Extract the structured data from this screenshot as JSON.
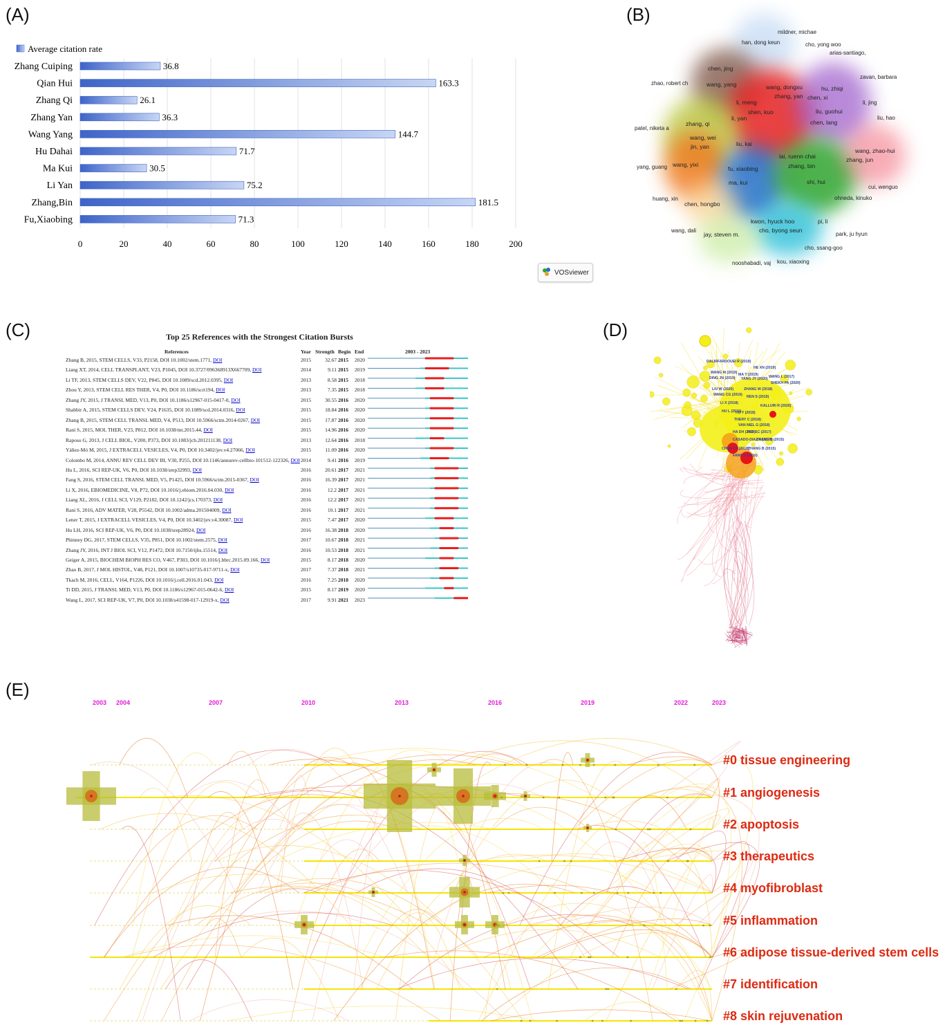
{
  "panels": {
    "a": "(A)",
    "b": "(B)",
    "c": "(C)",
    "d": "(D)",
    "e": "(E)"
  },
  "chart_data": [
    {
      "type": "bar",
      "orientation": "horizontal",
      "legend": "Average citation rate",
      "legend_position": "top-left",
      "categories": [
        "Zhang Cuiping",
        "Qian Hui",
        "Zhang Qi",
        "Zhang Yan",
        "Wang Yang",
        "Hu Dahai",
        "Ma Kui",
        "Li Yan",
        "Zhang,Bin",
        "Fu,Xiaobing"
      ],
      "values": [
        36.8,
        163.3,
        26.1,
        36.3,
        144.7,
        71.7,
        30.5,
        75.2,
        181.5,
        71.3
      ],
      "xlim": [
        0,
        200
      ],
      "xticks": [
        "0",
        "20",
        "40",
        "60",
        "80",
        "100",
        "120",
        "140",
        "160",
        "180",
        "200"
      ],
      "grid": "vertical",
      "color": "#3e64c8"
    },
    {
      "type": "network",
      "tool": "VOSviewer",
      "clusters": [
        {
          "color": "#e52222",
          "labels": [
            "wang, dongxu",
            "zhang, yan",
            "li, meng",
            "shen, kuo",
            "li, yan"
          ]
        },
        {
          "color": "#9b59c9",
          "labels": [
            "hu, zhiqi",
            "chen, xi",
            "liu, guohui",
            "chen, lang"
          ]
        },
        {
          "color": "#7a5040",
          "labels": [
            "chen, jing",
            "wang, yang"
          ]
        },
        {
          "color": "#b5c230",
          "labels": [
            "zhang, qi",
            "wang, wei",
            "jin, yan"
          ]
        },
        {
          "color": "#f07820",
          "labels": [
            "wang, yixi"
          ]
        },
        {
          "color": "#2470c8",
          "labels": [
            "fu, xiaobing",
            "ma, kui"
          ]
        },
        {
          "color": "#2ea52e",
          "labels": [
            "lai, ruenn chai",
            "zhang, bin",
            "shi, hui"
          ]
        },
        {
          "color": "#2cc0d8",
          "labels": [
            "kwon, hyuck hoo",
            "cho, byong seun"
          ]
        },
        {
          "color": "#f26a7a",
          "labels": [
            "wang, zhao-hui",
            "zhang, jun"
          ]
        },
        {
          "color": "#a8c8ee",
          "labels": [
            "han, dong keun"
          ]
        },
        {
          "color": "#bfe890",
          "labels": [
            "jay, steven m."
          ]
        },
        {
          "color": "#f8d08a",
          "labels": [
            "chen, hongbo"
          ]
        }
      ],
      "other_labels": [
        "mildner, michae",
        "cho, yong woo",
        "arias-santiago,",
        "zavan, barbara",
        "zhao, robert ch",
        "li, jing",
        "liu, hao",
        "patel, niketa a",
        "liu, kai",
        "yang, guang",
        "cui, wenguo",
        "huang, xin",
        "ohneda, kinuko",
        "pi, li",
        "wang, dali",
        "park, ju hyun",
        "cho, ssang-goo",
        "nooshabadi, vaj",
        "kou, xiaoxing"
      ],
      "badge": "VOSviewer"
    },
    {
      "type": "table",
      "title": "Top 25 References with the Strongest Citation Bursts",
      "columns": [
        "References",
        "Year",
        "Strength",
        "Begin",
        "End",
        "2003 - 2023"
      ],
      "range": [
        2003,
        2023
      ],
      "rows": [
        {
          "ref": "Zhang B, 2015, STEM CELLS, V33, P2158, DOI 10.1002/stem.1771, ",
          "year": 2015,
          "strength": "32.67",
          "begin": 2015,
          "end": 2020
        },
        {
          "ref": "Liang XT, 2014, CELL TRANSPLANT, V23, P1045, DOI 10.3727/096368913X667709, ",
          "year": 2014,
          "strength": "9.11",
          "begin": 2015,
          "end": 2019
        },
        {
          "ref": "Li TF, 2013, STEM CELLS DEV, V22, P845, DOI 10.1089/scd.2012.0395, ",
          "year": 2013,
          "strength": "8.58",
          "begin": 2015,
          "end": 2018
        },
        {
          "ref": "Zhou Y, 2013, STEM CELL RES THER, V4, P0, DOI 10.1186/scrt194, ",
          "year": 2013,
          "strength": "7.35",
          "begin": 2015,
          "end": 2018
        },
        {
          "ref": "Zhang JY, 2015, J TRANSL MED, V13, P0, DOI 10.1186/s12967-015-0417-0, ",
          "year": 2015,
          "strength": "30.55",
          "begin": 2016,
          "end": 2020
        },
        {
          "ref": "Shabbir A, 2015, STEM CELLS DEV, V24, P1635, DOI 10.1089/scd.2014.0316, ",
          "year": 2015,
          "strength": "18.84",
          "begin": 2016,
          "end": 2020
        },
        {
          "ref": "Zhang B, 2015, STEM CELL TRANSL MED, V4, P513, DOI 10.5966/sctm.2014-0267, ",
          "year": 2015,
          "strength": "17.87",
          "begin": 2016,
          "end": 2020
        },
        {
          "ref": "Rani S, 2015, MOL THER, V23, P812, DOI 10.1038/mt.2015.44, ",
          "year": 2015,
          "strength": "14.96",
          "begin": 2016,
          "end": 2020
        },
        {
          "ref": "Raposo G, 2013, J CELL BIOL, V200, P373, DOI 10.1083/jcb.201211138, ",
          "year": 2013,
          "strength": "12.64",
          "begin": 2016,
          "end": 2018
        },
        {
          "ref": "Yáñez-Mó M, 2015, J EXTRACELL VESICLES, V4, P0, DOI 10.3402/jev.v4.27066, ",
          "year": 2015,
          "strength": "11.09",
          "begin": 2016,
          "end": 2020
        },
        {
          "ref": "Colombo M, 2014, ANNU REV CELL DEV BI, V30, P255, DOI 10.1146/annurev-cellbio-101512-122326, ",
          "year": 2014,
          "strength": "9.41",
          "begin": 2016,
          "end": 2019
        },
        {
          "ref": "Hu L, 2016, SCI REP-UK, V6, P0, DOI 10.1038/srep32993, ",
          "year": 2016,
          "strength": "20.61",
          "begin": 2017,
          "end": 2021
        },
        {
          "ref": "Fang S, 2016, STEM CELL TRANSL MED, V5, P1425, DOI 10.5966/sctm.2015-0367, ",
          "year": 2016,
          "strength": "16.39",
          "begin": 2017,
          "end": 2021
        },
        {
          "ref": "Li X, 2016, EBIOMEDICINE, V8, P72, DOI 10.1016/j.ebiom.2016.04.030, ",
          "year": 2016,
          "strength": "12.2",
          "begin": 2017,
          "end": 2021
        },
        {
          "ref": "Liang XL, 2016, J CELL SCI, V129, P2182, DOI 10.1242/jcs.170373, ",
          "year": 2016,
          "strength": "12.2",
          "begin": 2017,
          "end": 2021
        },
        {
          "ref": "Rani S, 2016, ADV MATER, V28, P5542, DOI 10.1002/adma.201504009, ",
          "year": 2016,
          "strength": "10.1",
          "begin": 2017,
          "end": 2021
        },
        {
          "ref": "Lener T, 2015, J EXTRACELL VESICLES, V4, P0, DOI 10.3402/jev.v4.30087, ",
          "year": 2015,
          "strength": "7.47",
          "begin": 2017,
          "end": 2020
        },
        {
          "ref": "Hu LH, 2016, SCI REP-UK, V6, P0, DOI 10.1038/srep28924, ",
          "year": 2016,
          "strength": "16.38",
          "begin": 2018,
          "end": 2020
        },
        {
          "ref": "Phinney DG, 2017, STEM CELLS, V35, P851, DOI 10.1002/stem.2575, ",
          "year": 2017,
          "strength": "10.67",
          "begin": 2018,
          "end": 2021
        },
        {
          "ref": "Zhang JY, 2016, INT J BIOL SCI, V12, P1472, DOI 10.7150/ijbs.15514, ",
          "year": 2016,
          "strength": "10.53",
          "begin": 2018,
          "end": 2021
        },
        {
          "ref": "Geiger A, 2015, BIOCHEM BIOPH RES CO, V467, P303, DOI 10.1016/j.bbrc.2015.09.166, ",
          "year": 2015,
          "strength": "8.17",
          "begin": 2018,
          "end": 2020
        },
        {
          "ref": "Zhao B, 2017, J MOL HISTOL, V48, P121, DOI 10.1007/s10735-017-9711-x, ",
          "year": 2017,
          "strength": "7.37",
          "begin": 2018,
          "end": 2021
        },
        {
          "ref": "Tkach M, 2016, CELL, V164, P1226, DOI 10.1016/j.cell.2016.01.043, ",
          "year": 2016,
          "strength": "7.25",
          "begin": 2018,
          "end": 2020
        },
        {
          "ref": "Ti DD, 2015, J TRANSL MED, V13, P0, DOI 10.1186/s12967-015-0642-6, ",
          "year": 2015,
          "strength": "8.17",
          "begin": 2019,
          "end": 2020
        },
        {
          "ref": "Wang L, 2017, SCI REP-UK, V7, P0, DOI 10.1038/s41598-017-12919-x, ",
          "year": 2017,
          "strength": "9.91",
          "begin": 2021,
          "end": 2023
        }
      ],
      "link_text": "DOI"
    },
    {
      "type": "network",
      "node_labels": [
        "DALIRFARDOUEI R (2019)",
        "HE XN (2019)",
        "WANG M (2019)",
        "MA T (2019)",
        "DING JN (2019)",
        "YANG JY (2020)",
        "WANG L (2017)",
        "SHEKH PA (2020)",
        "LIU W (2020)",
        "ZHANG W (2018)",
        "WANG CG (2019)",
        "REN S (2019)",
        "LI X (2018)",
        "KALLURI R (2020)",
        "HU L (2016)",
        "HU Y (2018)",
        "THERY C (2018)",
        "VAN NIEL G (2018)",
        "HA DH (2020)",
        "TAO SC (2017)",
        "CASADO-DIAZ A (2020)",
        "ZHANG B (2015)",
        "CHEN CY (2018)",
        "ZHANG B (2015)",
        "FANG S (2016)",
        "PHINNEY DG (2017)"
      ],
      "colors": [
        "#f3ef1a",
        "#f4a21a",
        "#e8141a",
        "#e8829a"
      ]
    },
    {
      "type": "timeline",
      "years": [
        "2003",
        "2004",
        "2007",
        "2010",
        "2013",
        "2016",
        "2019",
        "2022",
        "2023"
      ],
      "clusters": [
        "#0 tissue engineering",
        "#1 angiogenesis",
        "#2 apoptosis",
        "#3 therapeutics",
        "#4 myofibroblast",
        "#5 inflammation",
        "#6 adipose tissue-derived stem cells",
        "#7 identification",
        "#8 skin rejuvenation"
      ],
      "year_color": "#e21bd8",
      "label_color": "#dd2a12"
    }
  ]
}
